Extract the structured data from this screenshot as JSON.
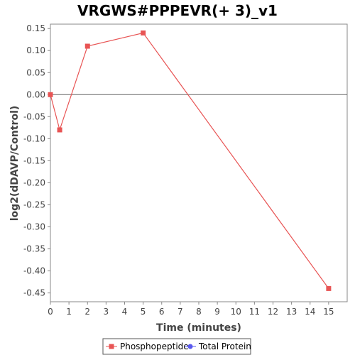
{
  "chart_data": {
    "type": "line",
    "title": "VRGWS#PPPEVR(+ 3)_v1",
    "xlabel": "Time (minutes)",
    "ylabel": "log2(dDAVP/Control)",
    "xlim": [
      0,
      16
    ],
    "ylim": [
      -0.47,
      0.16
    ],
    "x_ticks": [
      0,
      1,
      2,
      3,
      4,
      5,
      6,
      7,
      8,
      9,
      10,
      11,
      12,
      13,
      14,
      15
    ],
    "y_ticks": [
      0.15,
      0.1,
      0.05,
      0.0,
      -0.05,
      -0.1,
      -0.15,
      -0.2,
      -0.25,
      -0.3,
      -0.35,
      -0.4,
      -0.45
    ],
    "y_tick_labels": [
      "0.15",
      "0.10",
      "0.05",
      "0.00",
      "-0.05",
      "-0.10",
      "-0.15",
      "-0.20",
      "-0.25",
      "-0.30",
      "-0.35",
      "-0.40",
      "-0.45"
    ],
    "zero_line": true,
    "grid": false,
    "legend_position": "bottom",
    "series": [
      {
        "name": "Phosphopeptide",
        "color": "#e85454",
        "marker": "square",
        "x": [
          0,
          0.5,
          2,
          5,
          15
        ],
        "y": [
          0.0,
          -0.08,
          0.11,
          0.14,
          -0.44
        ]
      },
      {
        "name": "Total Protein",
        "color": "#5a5aee",
        "marker": "circle",
        "x": [],
        "y": []
      }
    ]
  }
}
